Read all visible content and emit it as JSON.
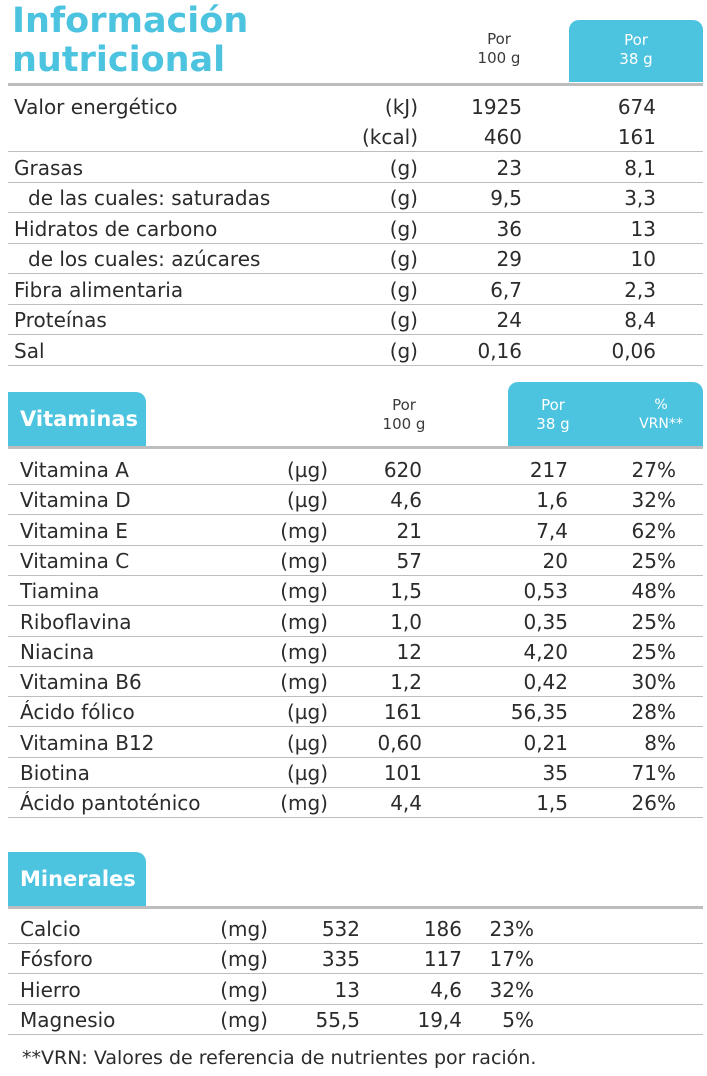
{
  "title_line1": "Información",
  "title_line2": "nutricional",
  "nutrition": {
    "col_100_line1": "Por",
    "col_100_line2": "100 g",
    "col_38_line1": "Por",
    "col_38_line2": "38 g",
    "rows": [
      {
        "name": "Valor energético",
        "unit": "(kJ)",
        "v100": "1925",
        "v38": "674"
      },
      {
        "name": "",
        "unit": "(kcal)",
        "v100": "460",
        "v38": "161"
      },
      {
        "name": "Grasas",
        "unit": "(g)",
        "v100": "23",
        "v38": "8,1"
      },
      {
        "name": "de las cuales: saturadas",
        "unit": "(g)",
        "v100": "9,5",
        "v38": "3,3"
      },
      {
        "name": "Hidratos de carbono",
        "unit": "(g)",
        "v100": "36",
        "v38": "13"
      },
      {
        "name": "de los cuales: azúcares",
        "unit": "(g)",
        "v100": "29",
        "v38": "10"
      },
      {
        "name": "Fibra alimentaria",
        "unit": "(g)",
        "v100": "6,7",
        "v38": "2,3"
      },
      {
        "name": "Proteínas",
        "unit": "(g)",
        "v100": "24",
        "v38": "8,4"
      },
      {
        "name": "Sal",
        "unit": "(g)",
        "v100": "0,16",
        "v38": "0,06"
      }
    ]
  },
  "vitamins": {
    "tab_label": "Vitaminas",
    "col_100_line1": "Por",
    "col_100_line2": "100 g",
    "col_38_line1": "Por",
    "col_38_line2": "38 g",
    "col_vrn_line1": "%",
    "col_vrn_line2": "VRN**",
    "rows": [
      {
        "name": "Vitamina A",
        "unit": "(µg)",
        "v100": "620",
        "v38": "217",
        "vrn": "27%"
      },
      {
        "name": "Vitamina D",
        "unit": "(µg)",
        "v100": "4,6",
        "v38": "1,6",
        "vrn": "32%"
      },
      {
        "name": "Vitamina E",
        "unit": "(mg)",
        "v100": "21",
        "v38": "7,4",
        "vrn": "62%"
      },
      {
        "name": "Vitamina C",
        "unit": "(mg)",
        "v100": "57",
        "v38": "20",
        "vrn": "25%"
      },
      {
        "name": "Tiamina",
        "unit": "(mg)",
        "v100": "1,5",
        "v38": "0,53",
        "vrn": "48%"
      },
      {
        "name": "Riboflavina",
        "unit": "(mg)",
        "v100": "1,0",
        "v38": "0,35",
        "vrn": "25%"
      },
      {
        "name": "Niacina",
        "unit": "(mg)",
        "v100": "12",
        "v38": "4,20",
        "vrn": "25%"
      },
      {
        "name": "Vitamina B6",
        "unit": "(mg)",
        "v100": "1,2",
        "v38": "0,42",
        "vrn": "30%"
      },
      {
        "name": "Ácido fólico",
        "unit": "(µg)",
        "v100": "161",
        "v38": "56,35",
        "vrn": "28%"
      },
      {
        "name": "Vitamina B12",
        "unit": "(µg)",
        "v100": "0,60",
        "v38": "0,21",
        "vrn": "8%"
      },
      {
        "name": "Biotina",
        "unit": "(µg)",
        "v100": "101",
        "v38": "35",
        "vrn": "71%"
      },
      {
        "name": "Ácido pantoténico",
        "unit": "(mg)",
        "v100": "4,4",
        "v38": "1,5",
        "vrn": "26%"
      }
    ]
  },
  "minerals": {
    "tab_label": "Minerales",
    "rows": [
      {
        "name": "Calcio",
        "unit": "(mg)",
        "v100": "532",
        "v38": "186",
        "vrn": "23%"
      },
      {
        "name": "Fósforo",
        "unit": "(mg)",
        "v100": "335",
        "v38": "117",
        "vrn": "17%"
      },
      {
        "name": "Hierro",
        "unit": "(mg)",
        "v100": "13",
        "v38": "4,6",
        "vrn": "32%"
      },
      {
        "name": "Magnesio",
        "unit": "(mg)",
        "v100": "55,5",
        "v38": "19,4",
        "vrn": "5%"
      }
    ]
  },
  "footnote": "**VRN: Valores de referencia de nutrientes por ración.",
  "colors": {
    "accent": "#4cc3df",
    "text": "#2b2b2b",
    "rule": "#bdbdbd"
  }
}
